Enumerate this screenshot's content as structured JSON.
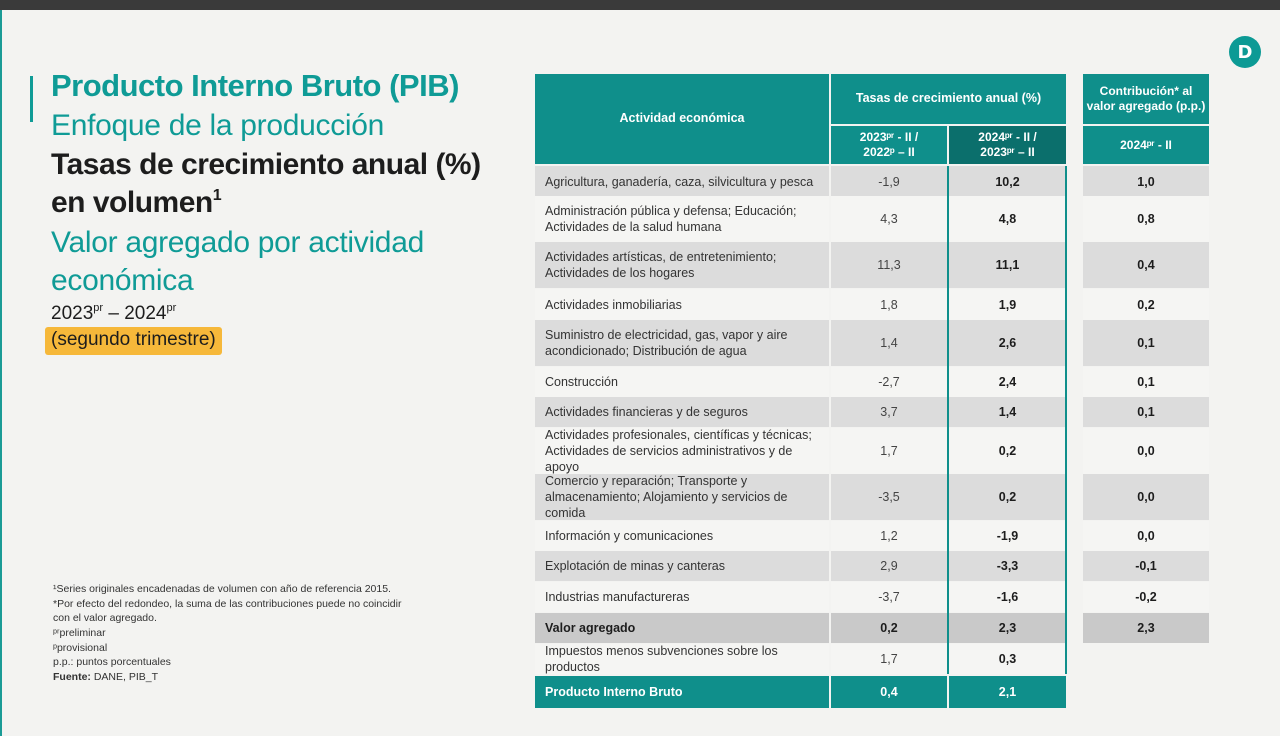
{
  "logo": {
    "letter": "D"
  },
  "title": {
    "line1": "Producto Interno Bruto (PIB)",
    "line2": "Enfoque de la producción",
    "line3": "Tasas de crecimiento anual (%)",
    "line4": "en volumen",
    "line4_sup": "1",
    "line5": "Valor agregado por actividad",
    "line6": "económica",
    "period_a": "2023",
    "period_a_sup": "pr",
    "period_dash": " – ",
    "period_b": "2024",
    "period_b_sup": "pr",
    "highlight": "(segundo trimestre)"
  },
  "notes": {
    "n1": "¹Series originales encadenadas de volumen con año de referencia 2015.",
    "n2": "*Por efecto del redondeo, la suma de las contribuciones puede no coincidir con el valor agregado.",
    "n3": "ᵖʳpreliminar",
    "n4": "ᵖprovisional",
    "n5": "p.p.: puntos porcentuales",
    "n6_label": "Fuente:",
    "n6_value": " DANE, PIB_T"
  },
  "table": {
    "header_activity": "Actividad económica",
    "header_growth": "Tasas de crecimiento anual (%)",
    "header_col1": "2023ᵖʳ - II / 2022ᵖ – II",
    "header_col2": "2024ᵖʳ - II / 2023ᵖʳ – II",
    "header_contrib": "Contribución* al valor agregado (p.p.)",
    "header_col3": "2024ᵖʳ - II",
    "rows": [
      {
        "activity": "Agricultura, ganadería, caza, silvicultura y pesca",
        "c1": "-1,9",
        "c2": "10,2",
        "c3": "1,0"
      },
      {
        "activity": "Administración pública y defensa; Educación; Actividades de la salud humana",
        "c1": "4,3",
        "c2": "4,8",
        "c3": "0,8"
      },
      {
        "activity": "Actividades artísticas, de entretenimiento; Actividades de los hogares",
        "c1": "11,3",
        "c2": "11,1",
        "c3": "0,4"
      },
      {
        "activity": "Actividades inmobiliarias",
        "c1": "1,8",
        "c2": "1,9",
        "c3": "0,2"
      },
      {
        "activity": "Suministro de electricidad, gas, vapor y aire acondicionado; Distribución de agua",
        "c1": "1,4",
        "c2": "2,6",
        "c3": "0,1"
      },
      {
        "activity": "Construcción",
        "c1": "-2,7",
        "c2": "2,4",
        "c3": "0,1"
      },
      {
        "activity": "Actividades financieras y de seguros",
        "c1": "3,7",
        "c2": "1,4",
        "c3": "0,1"
      },
      {
        "activity": "Actividades profesionales, científicas y técnicas; Actividades de servicios administrativos y de apoyo",
        "c1": "1,7",
        "c2": "0,2",
        "c3": "0,0"
      },
      {
        "activity": "Comercio y reparación; Transporte y almacenamiento; Alojamiento y servicios de comida",
        "c1": "-3,5",
        "c2": "0,2",
        "c3": "0,0"
      },
      {
        "activity": "Información y comunicaciones",
        "c1": "1,2",
        "c2": "-1,9",
        "c3": "0,0"
      },
      {
        "activity": "Explotación de minas y canteras",
        "c1": "2,9",
        "c2": "-3,3",
        "c3": "-0,1"
      },
      {
        "activity": "Industrias manufactureras",
        "c1": "-3,7",
        "c2": "-1,6",
        "c3": "-0,2"
      }
    ],
    "valor_agregado": {
      "activity": "Valor agregado",
      "c1": "0,2",
      "c2": "2,3",
      "c3": "2,3"
    },
    "impuestos": {
      "activity": "Impuestos menos subvenciones sobre los productos",
      "c1": "1,7",
      "c2": "0,3"
    },
    "pib": {
      "activity": "Producto Interno Bruto",
      "c1": "0,4",
      "c2": "2,1"
    }
  }
}
